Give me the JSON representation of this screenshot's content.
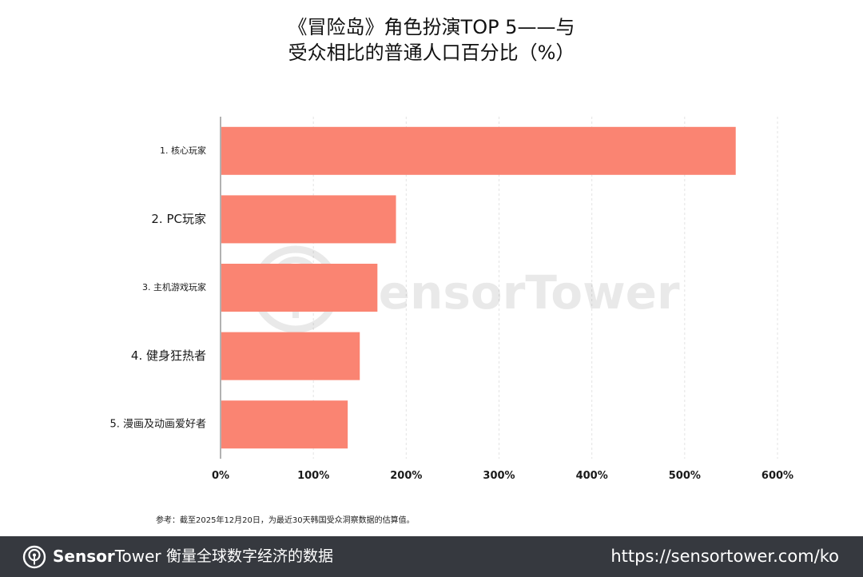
{
  "chart_data": {
    "type": "bar",
    "orientation": "horizontal",
    "title": [
      "《冒险岛》角色扮演TOP 5——与",
      "受众相比的普通人口百分比（%）"
    ],
    "categories": [
      "1. 核心玩家",
      "2. PC玩家",
      "3. 主机游戏玩家",
      "4. 健身狂热者",
      "5. 漫画及动画爱好者"
    ],
    "values": [
      555,
      189,
      169,
      150,
      137
    ],
    "xlim": [
      0,
      600
    ],
    "xticks": [
      0,
      100,
      200,
      300,
      400,
      500,
      600
    ],
    "xtick_labels": [
      "0%",
      "100%",
      "200%",
      "300%",
      "400%",
      "500%",
      "600%"
    ],
    "bar_color": "#fa8472",
    "grid": "vertical"
  },
  "watermark": {
    "text": "SensorTower",
    "icon": "sensor-tower-logo-icon"
  },
  "note": "参考：截至2025年12月20日，为最近30天韩国受众洞察数据的估算值。",
  "footer": {
    "brand_bold": "Sensor",
    "brand_thin": "Tower",
    "tagline": "衡量全球数字经济的数据",
    "url": "https://sensortower.com/ko",
    "logo_icon": "sensor-tower-logo-icon",
    "background": "#36393f"
  }
}
